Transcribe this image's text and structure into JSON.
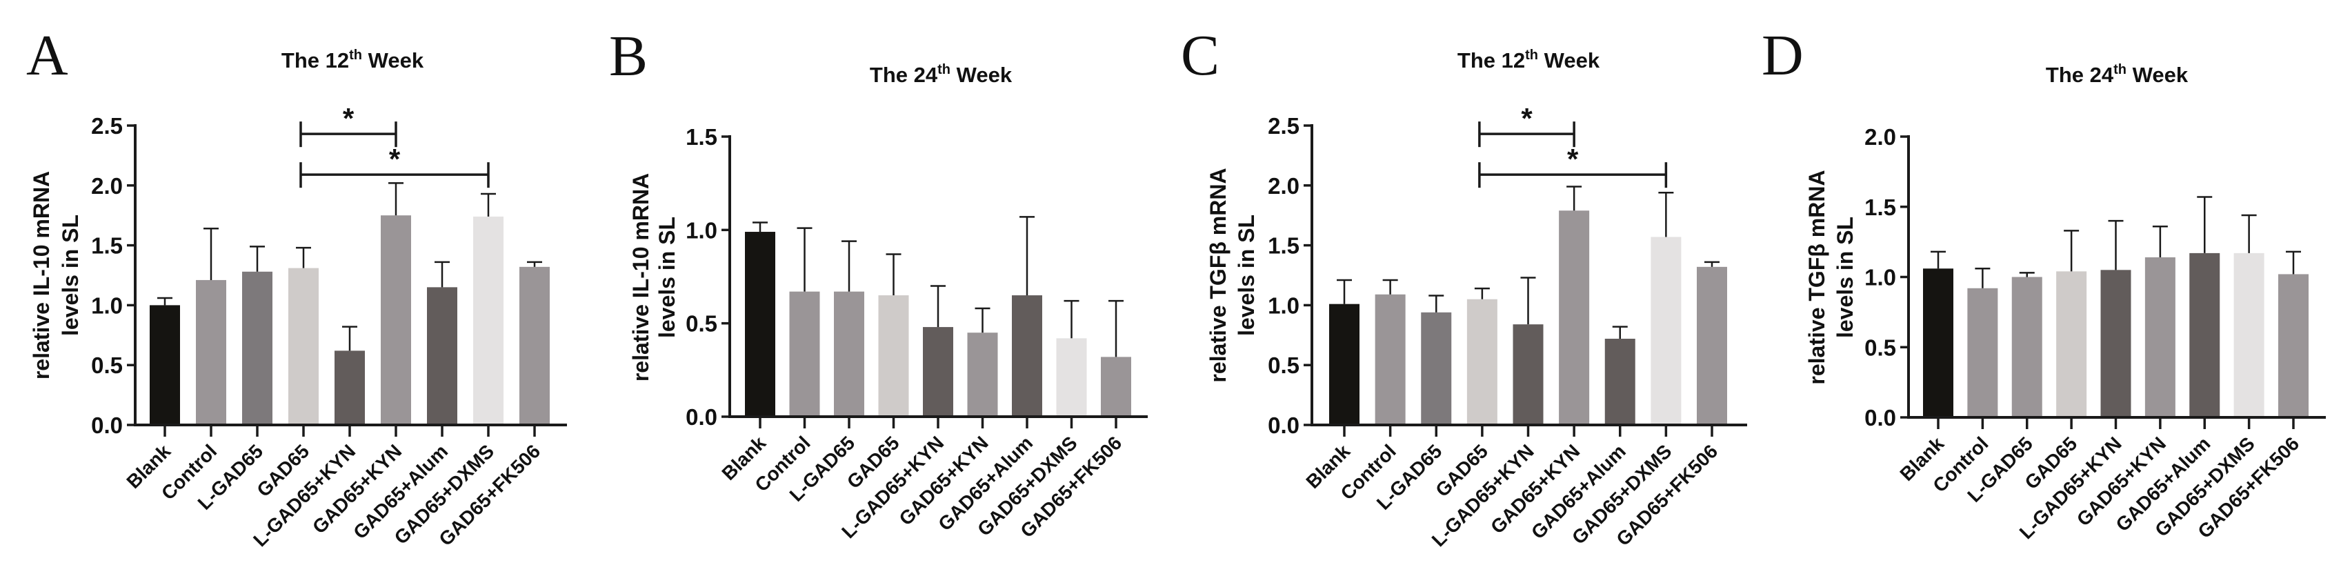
{
  "chart_data": [
    {
      "type": "bar",
      "panel": "A",
      "title_main": "The 12",
      "title_sup": "th",
      "title_end": " Week",
      "ylabel_line1": "relative IL-10 mRNA",
      "ylabel_line2": "levels in SL",
      "ylim": [
        0,
        2.5
      ],
      "yticks": [
        "0.0",
        "0.5",
        "1.0",
        "1.5",
        "2.0",
        "2.5"
      ],
      "ytick_values": [
        0,
        0.5,
        1.0,
        1.5,
        2.0,
        2.5
      ],
      "categories": [
        "Blank",
        "Control",
        "L-GAD65",
        "GAD65",
        "L-GAD65+KYN",
        "GAD65+KYN",
        "GAD65+Alum",
        "GAD65+DXMS",
        "GAD65+FK506"
      ],
      "values": [
        1.0,
        1.21,
        1.28,
        1.31,
        0.62,
        1.75,
        1.15,
        1.74,
        1.32
      ],
      "error_upper": [
        1.06,
        1.64,
        1.49,
        1.48,
        0.82,
        2.02,
        1.36,
        1.93,
        1.36
      ],
      "colors": [
        "#151411",
        "#9a9597",
        "#7d797b",
        "#cfcbc9",
        "#625c5b",
        "#9a9597",
        "#625c5b",
        "#e4e2e2",
        "#9a9597"
      ],
      "significance": [
        {
          "from": 3,
          "to": 5,
          "level": 2.43,
          "label": "*"
        },
        {
          "from": 3,
          "to": 7,
          "level": 2.09,
          "label": "*"
        }
      ]
    },
    {
      "type": "bar",
      "panel": "B",
      "title_main": "The 24",
      "title_sup": "th",
      "title_end": " Week",
      "ylabel_line1": "relative IL-10 mRNA",
      "ylabel_line2": "levels in SL",
      "ylim": [
        0,
        1.5
      ],
      "yticks": [
        "0.0",
        "0.5",
        "1.0",
        "1.5"
      ],
      "ytick_values": [
        0,
        0.5,
        1.0,
        1.5
      ],
      "categories": [
        "Blank",
        "Control",
        "L-GAD65",
        "GAD65",
        "L-GAD65+KYN",
        "GAD65+KYN",
        "GAD65+Alum",
        "GAD65+DXMS",
        "GAD65+FK506"
      ],
      "values": [
        0.99,
        0.67,
        0.67,
        0.65,
        0.48,
        0.45,
        0.65,
        0.42,
        0.32
      ],
      "error_upper": [
        1.04,
        1.01,
        0.94,
        0.87,
        0.7,
        0.58,
        1.07,
        0.62,
        0.62
      ],
      "colors": [
        "#151411",
        "#9a9597",
        "#9a9597",
        "#cfcbc9",
        "#625c5b",
        "#9a9597",
        "#625c5b",
        "#e4e2e2",
        "#9a9597"
      ],
      "significance": []
    },
    {
      "type": "bar",
      "panel": "C",
      "title_main": "The 12",
      "title_sup": "th",
      "title_end": " Week",
      "ylabel_line1": "relative TGFβ mRNA",
      "ylabel_line2": "levels in SL",
      "ylim": [
        0,
        2.5
      ],
      "yticks": [
        "0.0",
        "0.5",
        "1.0",
        "1.5",
        "2.0",
        "2.5"
      ],
      "ytick_values": [
        0,
        0.5,
        1.0,
        1.5,
        2.0,
        2.5
      ],
      "categories": [
        "Blank",
        "Control",
        "L-GAD65",
        "GAD65",
        "L-GAD65+KYN",
        "GAD65+KYN",
        "GAD65+Alum",
        "GAD65+DXMS",
        "GAD65+FK506"
      ],
      "values": [
        1.01,
        1.09,
        0.94,
        1.05,
        0.84,
        1.79,
        0.72,
        1.57,
        1.32
      ],
      "error_upper": [
        1.21,
        1.21,
        1.08,
        1.14,
        1.23,
        1.99,
        0.82,
        1.94,
        1.36
      ],
      "colors": [
        "#151411",
        "#9a9597",
        "#7d797b",
        "#cfcbc9",
        "#625c5b",
        "#9a9597",
        "#625c5b",
        "#e4e2e2",
        "#9a9597"
      ],
      "significance": [
        {
          "from": 3,
          "to": 5,
          "level": 2.43,
          "label": "*"
        },
        {
          "from": 3,
          "to": 7,
          "level": 2.09,
          "label": "*"
        }
      ]
    },
    {
      "type": "bar",
      "panel": "D",
      "title_main": "The 24",
      "title_sup": "th",
      "title_end": " Week",
      "ylabel_line1": "relative TGFβ mRNA",
      "ylabel_line2": "levels in SL",
      "ylim": [
        0,
        2.0
      ],
      "yticks": [
        "0.0",
        "0.5",
        "1.0",
        "1.5",
        "2.0"
      ],
      "ytick_values": [
        0,
        0.5,
        1.0,
        1.5,
        2.0
      ],
      "categories": [
        "Blank",
        "Control",
        "L-GAD65",
        "GAD65",
        "L-GAD65+KYN",
        "GAD65+KYN",
        "GAD65+Alum",
        "GAD65+DXMS",
        "GAD65+FK506"
      ],
      "values": [
        1.06,
        0.92,
        1.0,
        1.04,
        1.05,
        1.14,
        1.17,
        1.17,
        1.02
      ],
      "error_upper": [
        1.18,
        1.06,
        1.03,
        1.33,
        1.4,
        1.36,
        1.57,
        1.44,
        1.18
      ],
      "colors": [
        "#151411",
        "#9a9597",
        "#9a9597",
        "#cfcbc9",
        "#625c5b",
        "#9a9597",
        "#625c5b",
        "#e4e2e2",
        "#9a9597"
      ],
      "significance": []
    }
  ]
}
